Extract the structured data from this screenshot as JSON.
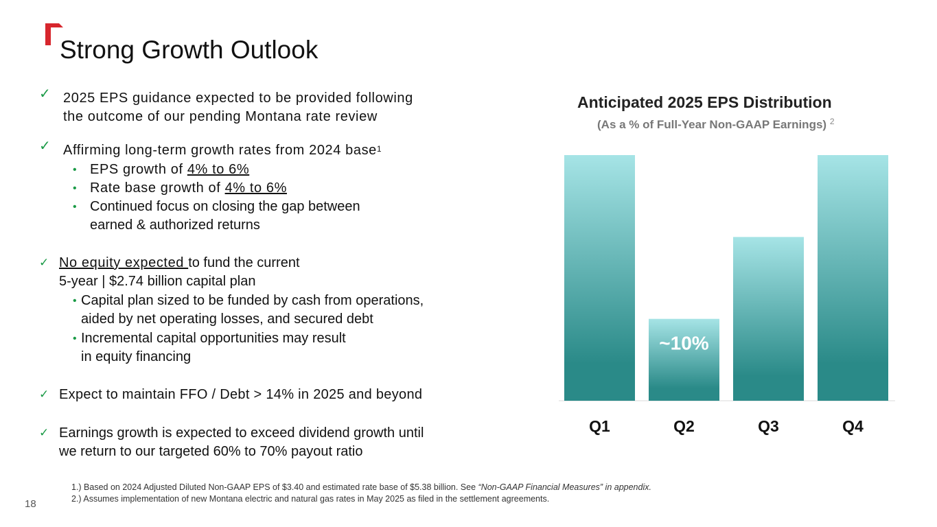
{
  "slide": {
    "title": "Strong Growth Outlook",
    "page_number": "18",
    "logo": "red-corner-logo",
    "colors": {
      "accent_red": "#d7262d",
      "check_green": "#1a9a46",
      "bar_top": "#a6e4e6",
      "bar_bottom": "#2a8a88"
    }
  },
  "bullets": {
    "b1": {
      "line1": "2025 EPS guidance expected to be provided following",
      "line2": "the outcome of our pending Montana rate review"
    },
    "b2": {
      "text": "Affirming long-term growth rates from 2024 base",
      "sup": "1",
      "sub1_prefix": "EPS growth of ",
      "sub1_value": "4% to 6%",
      "sub2_prefix": "Rate base growth of ",
      "sub2_value": "4% to 6%",
      "sub3_line1": "Continued focus on closing the gap between",
      "sub3_line2": "earned & authorized returns"
    },
    "b3": {
      "underlined": "No equity expected ",
      "rest": "to fund the current",
      "line2": "5-year | $2.74 billion capital plan",
      "sub1_line1": "Capital plan sized to be funded by cash from operations,",
      "sub1_line2": "aided by net operating losses, and secured debt",
      "sub2_line1": "Incremental capital opportunities may result",
      "sub2_line2": "in equity financing"
    },
    "b4": {
      "text": "Expect to maintain FFO / Debt > 14% in 2025 and beyond"
    },
    "b5": {
      "line1": "Earnings growth is expected to exceed dividend growth until",
      "line2": "we return to our targeted 60% to 70% payout ratio"
    },
    "bullet_glyph": "•",
    "check_glyph": "✓"
  },
  "footnotes": {
    "f1_text": "1.) Based on 2024 Adjusted Diluted Non-GAAP EPS of $3.40 and estimated rate base of $5.38 billion. See ",
    "f1_italic": "“Non-GAAP Financial Measures” in appendix.",
    "f2_text": "2.) Assumes implementation of new Montana electric and natural gas rates in May 2025 as filed in the settlement agreements."
  },
  "chart_data": {
    "type": "bar",
    "title": "Anticipated 2025 EPS Distribution",
    "subtitle": "(As a % of Full-Year Non-GAAP Earnings)",
    "subtitle_sup": "2",
    "categories": [
      "Q1",
      "Q2",
      "Q3",
      "Q4"
    ],
    "values": [
      30,
      10,
      20,
      30
    ],
    "data_labels": [
      "",
      "~10%",
      "",
      ""
    ],
    "ylim": [
      0,
      30
    ],
    "xlabel": "",
    "ylabel": ""
  }
}
